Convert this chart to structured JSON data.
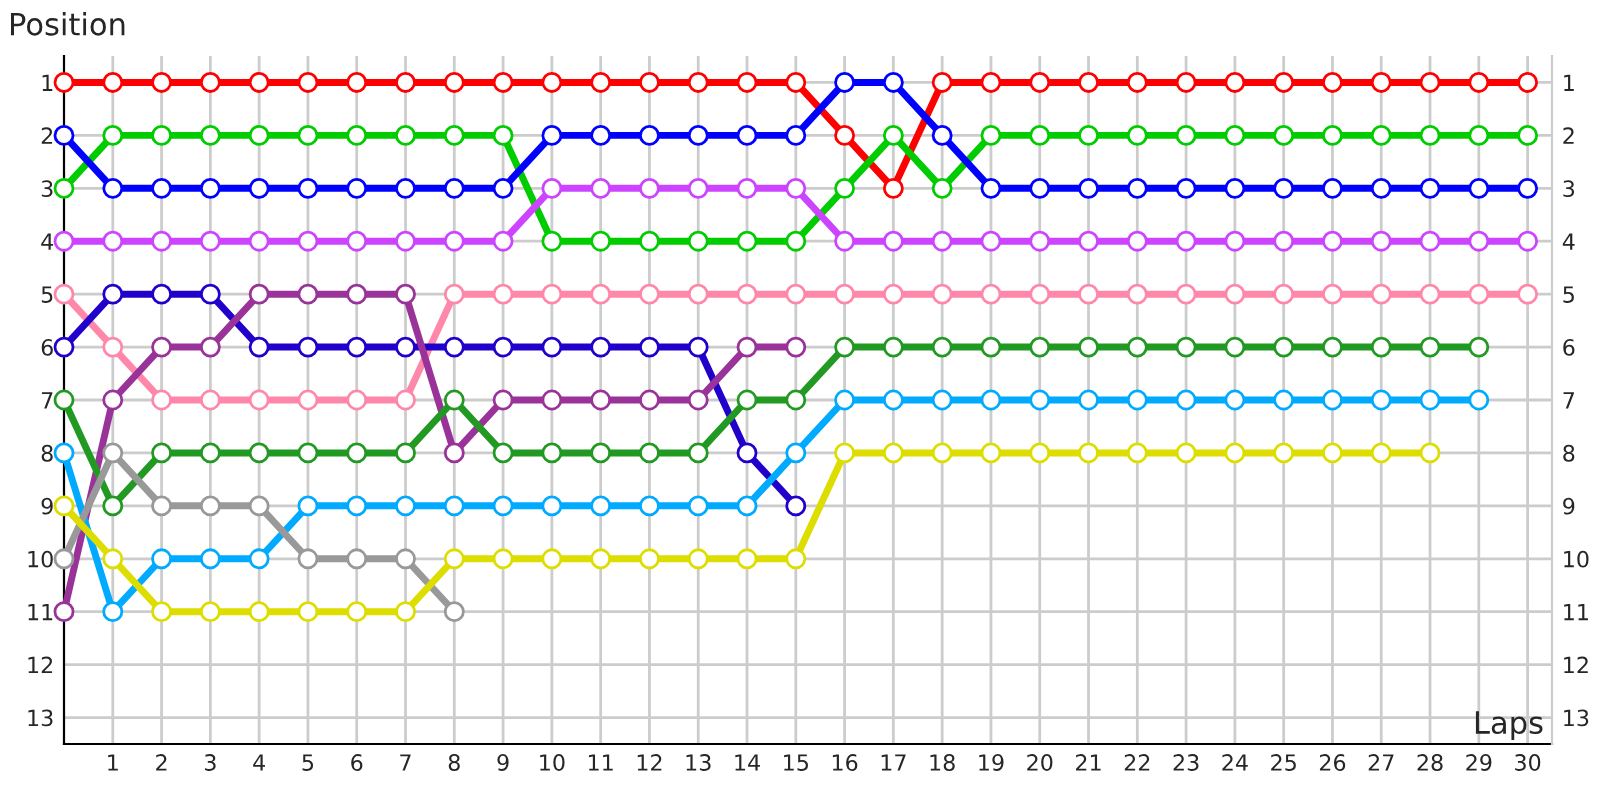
{
  "chart_data": {
    "type": "line",
    "xlabel": "Laps",
    "ylabel": "Position",
    "x": [
      0,
      1,
      2,
      3,
      4,
      5,
      6,
      7,
      8,
      9,
      10,
      11,
      12,
      13,
      14,
      15,
      16,
      17,
      18,
      19,
      20,
      21,
      22,
      23,
      24,
      25,
      26,
      27,
      28,
      29,
      30
    ],
    "xlim": [
      0,
      30.5
    ],
    "xticks": [
      1,
      2,
      3,
      4,
      5,
      6,
      7,
      8,
      9,
      10,
      11,
      12,
      13,
      14,
      15,
      16,
      17,
      18,
      19,
      20,
      21,
      22,
      23,
      24,
      25,
      26,
      27,
      28,
      29,
      30
    ],
    "ylim": [
      13.5,
      0.5
    ],
    "yticks": [
      1,
      2,
      3,
      4,
      5,
      6,
      7,
      8,
      9,
      10,
      11,
      12,
      13
    ],
    "y2lim": [
      13.5,
      0.5
    ],
    "y2ticks": [
      1,
      2,
      3,
      4,
      5,
      6,
      7,
      8,
      9,
      10,
      11,
      12,
      13
    ],
    "grid": true,
    "legend": false,
    "marker": "circle",
    "line_style": "solid",
    "series": [
      {
        "color": "#ff0000",
        "values": [
          1,
          1,
          1,
          1,
          1,
          1,
          1,
          1,
          1,
          1,
          1,
          1,
          1,
          1,
          1,
          1,
          2,
          3,
          1,
          1,
          1,
          1,
          1,
          1,
          1,
          1,
          1,
          1,
          1,
          1,
          1
        ]
      },
      {
        "color": "#00cc00",
        "values": [
          3,
          2,
          2,
          2,
          2,
          2,
          2,
          2,
          2,
          2,
          4,
          4,
          4,
          4,
          4,
          4,
          3,
          2,
          3,
          2,
          2,
          2,
          2,
          2,
          2,
          2,
          2,
          2,
          2,
          2,
          2
        ]
      },
      {
        "color": "#0000ff",
        "values": [
          2,
          3,
          3,
          3,
          3,
          3,
          3,
          3,
          3,
          3,
          2,
          2,
          2,
          2,
          2,
          2,
          1,
          1,
          2,
          3,
          3,
          3,
          3,
          3,
          3,
          3,
          3,
          3,
          3,
          3,
          3
        ]
      },
      {
        "color": "#cc44ff",
        "values": [
          4,
          4,
          4,
          4,
          4,
          4,
          4,
          4,
          4,
          4,
          3,
          3,
          3,
          3,
          3,
          3,
          4,
          4,
          4,
          4,
          4,
          4,
          4,
          4,
          4,
          4,
          4,
          4,
          4,
          4,
          4
        ]
      },
      {
        "color": "#ff88aa",
        "values": [
          5,
          6,
          7,
          7,
          7,
          7,
          7,
          7,
          5,
          5,
          5,
          5,
          5,
          5,
          5,
          5,
          5,
          5,
          5,
          5,
          5,
          5,
          5,
          5,
          5,
          5,
          5,
          5,
          5,
          5,
          5
        ]
      },
      {
        "color": "#2200cc",
        "values": [
          6,
          5,
          5,
          5,
          6,
          6,
          6,
          6,
          6,
          6,
          6,
          6,
          6,
          6,
          8,
          9,
          null,
          null,
          null,
          null,
          null,
          null,
          null,
          null,
          null,
          null,
          null,
          null,
          null,
          null,
          null
        ]
      },
      {
        "color": "#993399",
        "values": [
          11,
          7,
          6,
          6,
          5,
          5,
          5,
          5,
          8,
          7,
          7,
          7,
          7,
          7,
          6,
          6,
          null,
          null,
          null,
          null,
          null,
          null,
          null,
          null,
          null,
          null,
          null,
          null,
          null,
          null,
          null
        ]
      },
      {
        "color": "#229922",
        "values": [
          7,
          9,
          8,
          8,
          8,
          8,
          8,
          8,
          7,
          8,
          8,
          8,
          8,
          8,
          7,
          7,
          6,
          6,
          6,
          6,
          6,
          6,
          6,
          6,
          6,
          6,
          6,
          6,
          6,
          6,
          null
        ]
      },
      {
        "color": "#00aaff",
        "values": [
          8,
          11,
          10,
          10,
          10,
          9,
          9,
          9,
          9,
          9,
          9,
          9,
          9,
          9,
          9,
          8,
          7,
          7,
          7,
          7,
          7,
          7,
          7,
          7,
          7,
          7,
          7,
          7,
          7,
          7,
          null
        ]
      },
      {
        "color": "#999999",
        "values": [
          10,
          8,
          9,
          9,
          9,
          10,
          10,
          10,
          11,
          null,
          null,
          null,
          null,
          null,
          null,
          null,
          null,
          null,
          null,
          null,
          null,
          null,
          null,
          null,
          null,
          null,
          null,
          null,
          null,
          null,
          null
        ]
      },
      {
        "color": "#dddd00",
        "values": [
          9,
          10,
          11,
          11,
          11,
          11,
          11,
          11,
          10,
          10,
          10,
          10,
          10,
          10,
          10,
          10,
          8,
          8,
          8,
          8,
          8,
          8,
          8,
          8,
          8,
          8,
          8,
          8,
          8,
          null,
          null
        ]
      }
    ]
  }
}
